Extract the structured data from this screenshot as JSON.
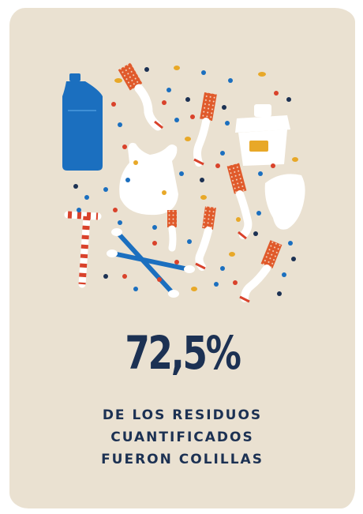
{
  "stat": {
    "value": "72,5%"
  },
  "caption": {
    "lines": [
      "DE LOS RESIDUOS",
      "CUANTIFICADOS",
      "FUERON COLILLAS"
    ]
  },
  "colors": {
    "background": "#eae1d1",
    "text": "#1c3153",
    "bottle": "#1b6fbf",
    "filter": "#e05a2b",
    "confetti_blue": "#1b6fbf",
    "confetti_yellow": "#e8a828",
    "confetti_red": "#d9422b",
    "confetti_navy": "#1c3153"
  },
  "illustration": {
    "items": [
      "plastic-bottle",
      "plastic-bag",
      "cigarette-butts",
      "food-container",
      "cotton-swabs",
      "paper-cup",
      "confetti"
    ]
  }
}
